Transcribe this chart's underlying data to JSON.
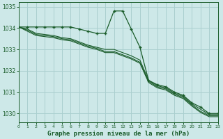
{
  "title": "Graphe pression niveau de la mer (hPa)",
  "bg_color": "#cde8e8",
  "grid_color": "#aacfcf",
  "line_color": "#1a5c2a",
  "xlim": [
    0,
    23
  ],
  "ylim": [
    1029.6,
    1035.2
  ],
  "yticks": [
    1030,
    1031,
    1032,
    1033,
    1034,
    1035
  ],
  "xticks": [
    0,
    1,
    2,
    3,
    4,
    5,
    6,
    7,
    8,
    9,
    10,
    11,
    12,
    13,
    14,
    15,
    16,
    17,
    18,
    19,
    20,
    21,
    22,
    23
  ],
  "line1": [
    1034.05,
    1034.05,
    1034.05,
    1034.05,
    1034.05,
    1034.05,
    1034.05,
    1033.95,
    1033.85,
    1033.75,
    1033.75,
    1034.8,
    1034.8,
    1033.95,
    1033.1,
    1031.55,
    1031.35,
    1031.25,
    1031.0,
    1030.85,
    1030.5,
    1030.3,
    1030.0,
    1030.0
  ],
  "line2": [
    1034.05,
    1033.95,
    1033.75,
    1033.7,
    1033.65,
    1033.55,
    1033.5,
    1033.35,
    1033.2,
    1033.1,
    1033.0,
    1033.0,
    1032.85,
    1032.7,
    1032.5,
    1031.55,
    1031.3,
    1031.2,
    1030.95,
    1030.8,
    1030.45,
    1030.2,
    1029.95,
    1029.95
  ],
  "line3": [
    1034.05,
    1033.9,
    1033.7,
    1033.65,
    1033.6,
    1033.5,
    1033.45,
    1033.3,
    1033.15,
    1033.05,
    1032.9,
    1032.9,
    1032.75,
    1032.6,
    1032.4,
    1031.5,
    1031.25,
    1031.15,
    1030.9,
    1030.75,
    1030.4,
    1030.1,
    1029.9,
    1029.9
  ],
  "line4": [
    1034.05,
    1033.85,
    1033.65,
    1033.6,
    1033.55,
    1033.45,
    1033.4,
    1033.25,
    1033.1,
    1033.0,
    1032.85,
    1032.85,
    1032.7,
    1032.55,
    1032.35,
    1031.45,
    1031.2,
    1031.1,
    1030.85,
    1030.7,
    1030.35,
    1030.05,
    1029.85,
    1029.85
  ]
}
